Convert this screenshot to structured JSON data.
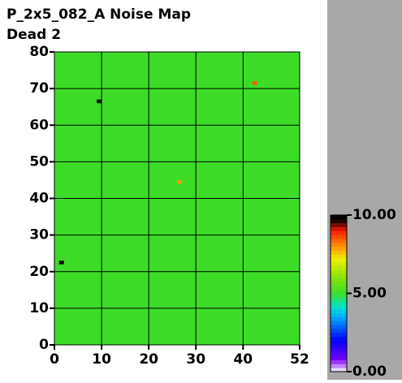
{
  "chart_data": {
    "type": "heatmap",
    "title": "P_2x5_082_A Noise Map",
    "subtitle": "Dead 2",
    "xlim": [
      0,
      52
    ],
    "xticks": [
      0,
      10,
      20,
      30,
      40,
      52
    ],
    "ylim": [
      0,
      80
    ],
    "yticks": [
      0,
      10,
      20,
      30,
      40,
      50,
      60,
      70,
      80
    ],
    "grid": true,
    "background_value": 5,
    "cells": [
      {
        "x": 9,
        "y": 66,
        "value": 10
      },
      {
        "x": 1,
        "y": 22,
        "value": 10
      },
      {
        "x": 42,
        "y": 71,
        "value": 8.5
      },
      {
        "x": 26,
        "y": 44,
        "value": 8
      }
    ],
    "colorbar": {
      "lim": [
        0,
        10
      ],
      "ticks": [
        {
          "value": 10,
          "label": "10.00"
        },
        {
          "value": 5,
          "label": "5.00"
        },
        {
          "value": 0,
          "label": "0.00"
        }
      ]
    }
  }
}
